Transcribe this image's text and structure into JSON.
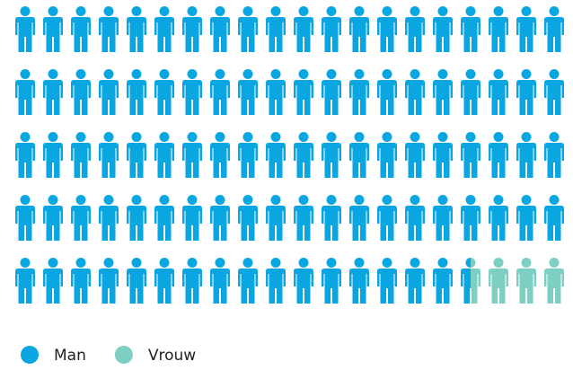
{
  "chart_data": {
    "type": "pictogram",
    "series": [
      {
        "name": "Man",
        "color": "#0aa6e2",
        "values": [
          96.5
        ]
      },
      {
        "name": "Vrouw",
        "color": "#7ccfc2",
        "values": [
          3.5
        ]
      }
    ]
  }
}
